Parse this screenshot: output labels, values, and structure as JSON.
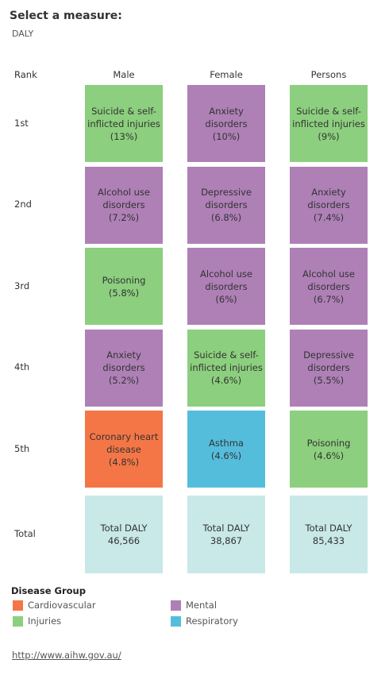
{
  "header": {
    "title": "Select a measure:",
    "measure": "DALY"
  },
  "table": {
    "columns": [
      "Rank",
      "Male",
      "Female",
      "Persons"
    ],
    "rows": [
      {
        "rank": "1st",
        "cells": [
          {
            "cause": "Suicide & self-inflicted injuries",
            "share": "(13%)",
            "group": "Injuries"
          },
          {
            "cause": "Anxiety disorders",
            "share": "(10%)",
            "group": "Mental"
          },
          {
            "cause": "Suicide & self-inflicted injuries",
            "share": "(9%)",
            "group": "Injuries"
          }
        ]
      },
      {
        "rank": "2nd",
        "cells": [
          {
            "cause": "Alcohol use disorders",
            "share": "(7.2%)",
            "group": "Mental"
          },
          {
            "cause": "Depressive disorders",
            "share": "(6.8%)",
            "group": "Mental"
          },
          {
            "cause": "Anxiety disorders",
            "share": "(7.4%)",
            "group": "Mental"
          }
        ]
      },
      {
        "rank": "3rd",
        "cells": [
          {
            "cause": "Poisoning",
            "share": "(5.8%)",
            "group": "Injuries"
          },
          {
            "cause": "Alcohol use disorders",
            "share": "(6%)",
            "group": "Mental"
          },
          {
            "cause": "Alcohol use disorders",
            "share": "(6.7%)",
            "group": "Mental"
          }
        ]
      },
      {
        "rank": "4th",
        "cells": [
          {
            "cause": "Anxiety disorders",
            "share": "(5.2%)",
            "group": "Mental"
          },
          {
            "cause": "Suicide & self-inflicted injuries",
            "share": "(4.6%)",
            "group": "Injuries"
          },
          {
            "cause": "Depressive disorders",
            "share": "(5.5%)",
            "group": "Mental"
          }
        ]
      },
      {
        "rank": "5th",
        "cells": [
          {
            "cause": "Coronary heart disease",
            "share": "(4.8%)",
            "group": "Cardiovascular"
          },
          {
            "cause": "Asthma",
            "share": "(4.6%)",
            "group": "Respiratory"
          },
          {
            "cause": "Poisoning",
            "share": "(4.6%)",
            "group": "Injuries"
          }
        ]
      }
    ],
    "total": {
      "rank": "Total",
      "color": "#c9e8e8",
      "cells": [
        {
          "label": "Total DALY",
          "value": "46,566"
        },
        {
          "label": "Total DALY",
          "value": "38,867"
        },
        {
          "label": "Total DALY",
          "value": "85,433"
        }
      ]
    }
  },
  "legend": {
    "title": "Disease Group",
    "items": [
      {
        "label": "Cardiovascular",
        "color": "#f47646"
      },
      {
        "label": "Injuries",
        "color": "#8ccf7e"
      },
      {
        "label": "Mental",
        "color": "#ae80b6"
      },
      {
        "label": "Respiratory",
        "color": "#55bddc"
      }
    ]
  },
  "footer": {
    "link": "http://www.aihw.gov.au/"
  }
}
